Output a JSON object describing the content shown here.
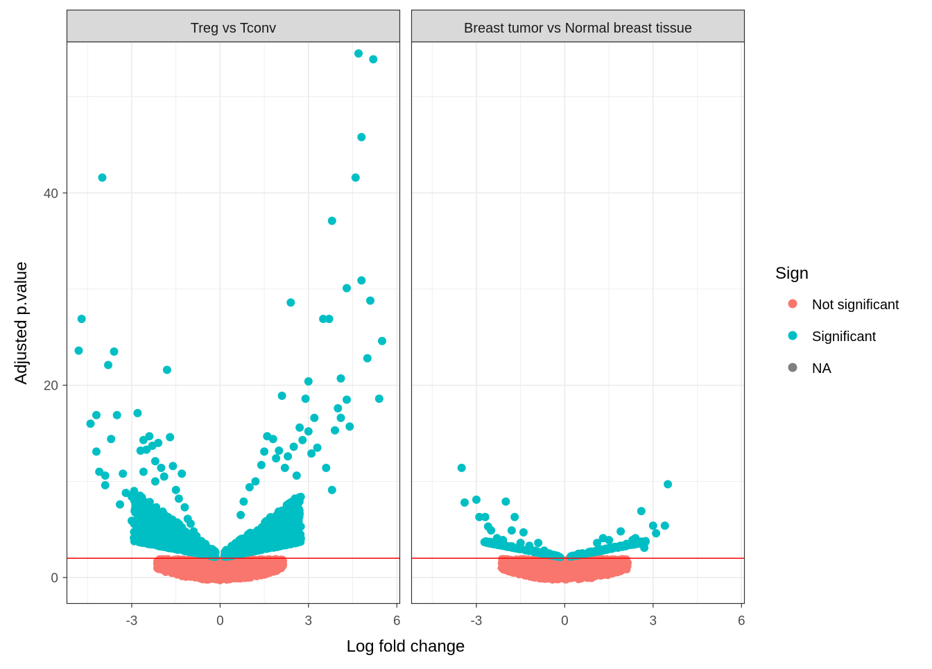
{
  "chart_data": {
    "type": "scatter",
    "xlabel": "Log fold change",
    "ylabel": "Adjusted p.value",
    "xlim": [
      -5.2,
      6.1
    ],
    "ylim": [
      -2.7,
      55.7
    ],
    "x_ticks": [
      -3,
      0,
      3,
      6
    ],
    "x_tick_labels": [
      "-3",
      "0",
      "3",
      "6"
    ],
    "y_ticks": [
      0,
      20,
      40
    ],
    "y_tick_labels": [
      "0",
      "20",
      "40"
    ],
    "threshold_line": {
      "y": 2,
      "color": "#ff0000"
    },
    "grid": true,
    "legend": {
      "title": "Sign",
      "position": "right",
      "entries": [
        {
          "label": "Not significant",
          "color": "#f8766d"
        },
        {
          "label": "Significant",
          "color": "#00bfc4"
        },
        {
          "label": "NA",
          "color": "#7f7f7f"
        }
      ]
    },
    "facets": [
      {
        "title": "Treg vs Tconv",
        "significant_points": [
          [
            -4.8,
            23.6
          ],
          [
            -4.7,
            26.9
          ],
          [
            -4.4,
            16.0
          ],
          [
            -4.2,
            16.9
          ],
          [
            -4.2,
            13.1
          ],
          [
            -4.1,
            11.0
          ],
          [
            -4.0,
            41.6
          ],
          [
            -3.9,
            10.6
          ],
          [
            -3.9,
            9.6
          ],
          [
            -3.8,
            22.1
          ],
          [
            -3.7,
            14.4
          ],
          [
            -3.6,
            23.5
          ],
          [
            -3.5,
            16.9
          ],
          [
            -3.4,
            7.6
          ],
          [
            -3.3,
            10.8
          ],
          [
            -3.2,
            8.8
          ],
          [
            -3.0,
            8.4
          ],
          [
            -3.0,
            5.9
          ],
          [
            -2.9,
            6.9
          ],
          [
            -2.8,
            17.1
          ],
          [
            -2.7,
            13.2
          ],
          [
            -2.6,
            14.3
          ],
          [
            -2.5,
            13.3
          ],
          [
            -2.4,
            14.7
          ],
          [
            -2.3,
            13.7
          ],
          [
            -2.2,
            12.1
          ],
          [
            -2.1,
            14.0
          ],
          [
            -2.0,
            11.4
          ],
          [
            -1.9,
            10.5
          ],
          [
            -1.8,
            21.6
          ],
          [
            -1.7,
            14.6
          ],
          [
            -1.6,
            11.6
          ],
          [
            -1.5,
            9.1
          ],
          [
            -1.3,
            10.8
          ],
          [
            -1.2,
            7.3
          ],
          [
            -1.1,
            6.1
          ],
          [
            -1.0,
            5.6
          ],
          [
            -0.9,
            4.8
          ],
          [
            -0.8,
            4.3
          ],
          [
            -2.6,
            11.0
          ],
          [
            -2.2,
            10.0
          ],
          [
            -1.4,
            8.2
          ],
          [
            0.7,
            6.5
          ],
          [
            0.8,
            7.9
          ],
          [
            1.0,
            9.4
          ],
          [
            1.2,
            10.0
          ],
          [
            1.4,
            11.7
          ],
          [
            1.5,
            13.1
          ],
          [
            1.6,
            14.7
          ],
          [
            1.8,
            14.4
          ],
          [
            1.9,
            12.4
          ],
          [
            2.0,
            13.2
          ],
          [
            2.1,
            18.9
          ],
          [
            2.2,
            11.4
          ],
          [
            2.3,
            12.6
          ],
          [
            2.4,
            28.6
          ],
          [
            2.5,
            13.6
          ],
          [
            2.6,
            10.6
          ],
          [
            2.7,
            15.6
          ],
          [
            2.8,
            14.3
          ],
          [
            2.9,
            18.6
          ],
          [
            3.0,
            20.4
          ],
          [
            3.0,
            15.2
          ],
          [
            3.1,
            12.9
          ],
          [
            3.2,
            16.6
          ],
          [
            3.3,
            13.5
          ],
          [
            3.5,
            26.9
          ],
          [
            3.6,
            11.4
          ],
          [
            3.7,
            26.9
          ],
          [
            3.8,
            37.1
          ],
          [
            3.8,
            9.1
          ],
          [
            3.9,
            15.3
          ],
          [
            4.0,
            17.6
          ],
          [
            4.1,
            20.7
          ],
          [
            4.1,
            16.6
          ],
          [
            4.3,
            30.1
          ],
          [
            4.3,
            18.5
          ],
          [
            4.4,
            15.7
          ],
          [
            4.6,
            41.6
          ],
          [
            4.7,
            54.5
          ],
          [
            4.8,
            30.9
          ],
          [
            4.8,
            45.8
          ],
          [
            5.0,
            22.8
          ],
          [
            5.1,
            28.8
          ],
          [
            5.2,
            53.9
          ],
          [
            5.4,
            18.6
          ],
          [
            5.5,
            24.6
          ]
        ]
      },
      {
        "title": "Breast tumor vs Normal breast tissue",
        "significant_points": [
          [
            -3.5,
            11.4
          ],
          [
            -3.4,
            7.8
          ],
          [
            -3.0,
            8.1
          ],
          [
            -2.9,
            6.3
          ],
          [
            -2.7,
            6.3
          ],
          [
            -2.6,
            5.3
          ],
          [
            -2.5,
            4.9
          ],
          [
            -2.3,
            4.1
          ],
          [
            -2.1,
            3.9
          ],
          [
            -2.0,
            7.9
          ],
          [
            -1.8,
            4.9
          ],
          [
            -1.7,
            6.3
          ],
          [
            -1.5,
            3.6
          ],
          [
            -1.4,
            4.7
          ],
          [
            -1.2,
            3.3
          ],
          [
            -0.9,
            3.6
          ],
          [
            -0.7,
            2.8
          ],
          [
            0.9,
            2.7
          ],
          [
            1.1,
            3.6
          ],
          [
            1.3,
            4.1
          ],
          [
            1.5,
            3.9
          ],
          [
            1.7,
            3.2
          ],
          [
            1.9,
            4.8
          ],
          [
            2.1,
            3.5
          ],
          [
            2.3,
            3.9
          ],
          [
            2.4,
            4.1
          ],
          [
            2.6,
            6.9
          ],
          [
            2.7,
            3.1
          ],
          [
            3.0,
            5.4
          ],
          [
            3.1,
            4.6
          ],
          [
            3.4,
            5.4
          ],
          [
            3.5,
            9.7
          ]
        ]
      }
    ]
  }
}
